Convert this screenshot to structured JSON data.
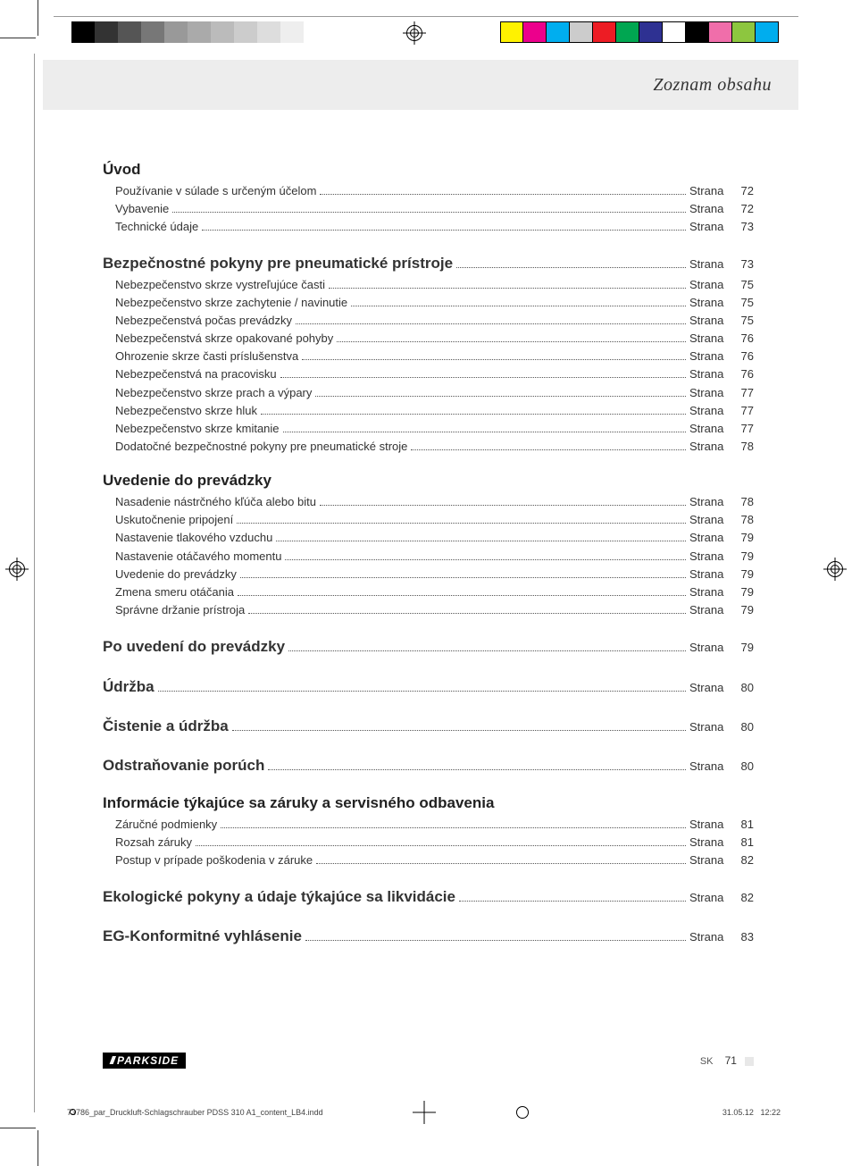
{
  "header_title": "Zoznam obsahu",
  "page_word": "Strana",
  "footer": {
    "lang": "SK",
    "page": "71",
    "brand": "PARKSIDE"
  },
  "slug": {
    "file": "73786_par_Druckluft-Schlagschrauber PDSS 310 A1_content_LB4.indd",
    "date": "31.05.12",
    "time": "12:22"
  },
  "colors": {
    "gray_bar": [
      "#000000",
      "#333333",
      "#555555",
      "#777777",
      "#999999",
      "#aaaaaa",
      "#bbbbbb",
      "#cccccc",
      "#dddddd",
      "#eeeeee",
      "#ffffff"
    ],
    "cmyk_bar": [
      "#fff200",
      "#ec008c",
      "#00aeef",
      "#cccccc",
      "#ed1c24",
      "#00a651",
      "#2e3192",
      "#ffffff",
      "#000000",
      "#f06eaa",
      "#8dc63f",
      "#00adee"
    ]
  },
  "sections": [
    {
      "title": "Úvod",
      "entries": [
        {
          "t": "Používanie v súlade s určeným účelom",
          "p": "72"
        },
        {
          "t": "Vybavenie",
          "p": "72"
        },
        {
          "t": "Technické údaje",
          "p": "73"
        }
      ]
    },
    {
      "title": "Bezpečnostné pokyny pre pneumatické prístroje",
      "inline": true,
      "page": "73",
      "entries": [
        {
          "t": "Nebezpečenstvo skrze vystreľujúce časti",
          "p": "75"
        },
        {
          "t": "Nebezpečenstvo skrze zachytenie / navinutie",
          "p": "75"
        },
        {
          "t": "Nebezpečenstvá počas prevádzky",
          "p": "75"
        },
        {
          "t": "Nebezpečenstvá skrze opakované pohyby",
          "p": "76"
        },
        {
          "t": "Ohrozenie skrze časti príslušenstva",
          "p": "76"
        },
        {
          "t": "Nebezpečenstvá na pracovisku",
          "p": "76"
        },
        {
          "t": "Nebezpečenstvo skrze prach a výpary",
          "p": "77"
        },
        {
          "t": "Nebezpečenstvo skrze hluk",
          "p": "77"
        },
        {
          "t": "Nebezpečenstvo skrze kmitanie",
          "p": "77"
        },
        {
          "t": "Dodatočné bezpečnostné pokyny pre pneumatické stroje",
          "p": "78"
        }
      ]
    },
    {
      "title": "Uvedenie do prevádzky",
      "entries": [
        {
          "t": "Nasadenie nástrčného kľúča alebo bitu",
          "p": "78"
        },
        {
          "t": "Uskutočnenie pripojení",
          "p": "78"
        },
        {
          "t": "Nastavenie tlakového vzduchu",
          "p": "79"
        },
        {
          "t": "Nastavenie otáčavého momentu",
          "p": "79"
        },
        {
          "t": "Uvedenie do prevádzky",
          "p": "79"
        },
        {
          "t": "Zmena smeru otáčania",
          "p": "79"
        },
        {
          "t": "Správne držanie prístroja",
          "p": "79"
        }
      ]
    },
    {
      "title": "Po uvedení do prevádzky",
      "inline": true,
      "page": "79",
      "entries": []
    },
    {
      "title": "Údržba",
      "inline": true,
      "page": "80",
      "entries": []
    },
    {
      "title": "Čistenie a údržba",
      "inline": true,
      "page": "80",
      "entries": []
    },
    {
      "title": "Odstraňovanie porúch",
      "inline": true,
      "page": "80",
      "entries": []
    },
    {
      "title": "Informácie týkajúce sa záruky a servisného odbavenia",
      "entries": [
        {
          "t": "Záručné podmienky",
          "p": "81"
        },
        {
          "t": "Rozsah záruky",
          "p": "81"
        },
        {
          "t": "Postup v prípade poškodenia v záruke",
          "p": "82"
        }
      ]
    },
    {
      "title": "Ekologické pokyny a údaje týkajúce sa likvidácie",
      "inline": true,
      "page": "82",
      "entries": []
    },
    {
      "title": "EG-Konformitné vyhlásenie",
      "inline": true,
      "page": "83",
      "entries": []
    }
  ]
}
